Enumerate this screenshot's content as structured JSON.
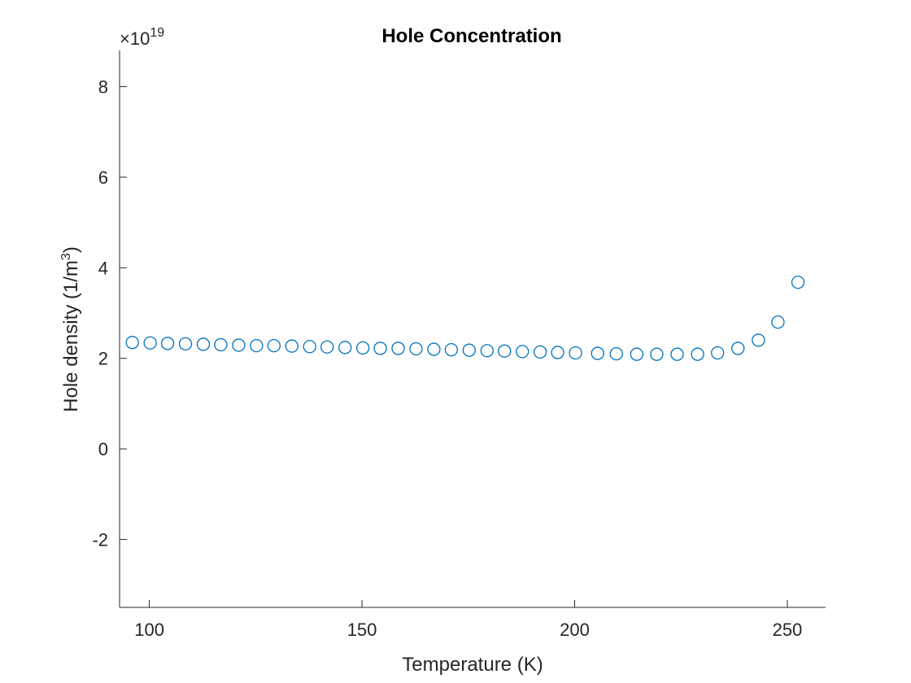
{
  "chart_data": {
    "type": "scatter",
    "title": "Hole Concentration",
    "xlabel": "Temperature (K)",
    "ylabel_prefix": "Hole density (1/m",
    "ylabel_sup": "3",
    "ylabel_suffix": ")",
    "y_multiplier_prefix": "×10",
    "y_multiplier_exponent": "19",
    "xlim": [
      93,
      259
    ],
    "ylim": [
      -3.5,
      8.8
    ],
    "xticks": [
      100,
      150,
      200,
      250
    ],
    "xtick_labels": [
      "100",
      "150",
      "200",
      "250"
    ],
    "yticks": [
      -2,
      0,
      2,
      4,
      6,
      8
    ],
    "ytick_labels": [
      "-2",
      "0",
      "2",
      "4",
      "6",
      "8"
    ],
    "y_units_scale": 1e+19,
    "grid": false,
    "marker": "open-circle",
    "color": "#0072BD",
    "x": [
      96,
      100.2,
      104.3,
      108.5,
      112.7,
      116.8,
      121.0,
      125.2,
      129.3,
      133.5,
      137.7,
      141.8,
      146.0,
      150.2,
      154.3,
      158.5,
      162.7,
      166.9,
      171.0,
      175.2,
      179.4,
      183.5,
      187.7,
      191.9,
      196.0,
      200.2,
      205.4,
      209.8,
      214.6,
      219.3,
      224.1,
      228.9,
      233.6,
      238.4,
      243.2,
      247.8,
      252.5
    ],
    "y": [
      2.35,
      2.34,
      2.33,
      2.32,
      2.31,
      2.3,
      2.29,
      2.28,
      2.28,
      2.27,
      2.26,
      2.25,
      2.24,
      2.23,
      2.22,
      2.22,
      2.21,
      2.2,
      2.19,
      2.18,
      2.17,
      2.16,
      2.15,
      2.14,
      2.13,
      2.12,
      2.11,
      2.1,
      2.09,
      2.09,
      2.09,
      2.09,
      2.12,
      2.22,
      2.4,
      2.8,
      3.68
    ]
  }
}
